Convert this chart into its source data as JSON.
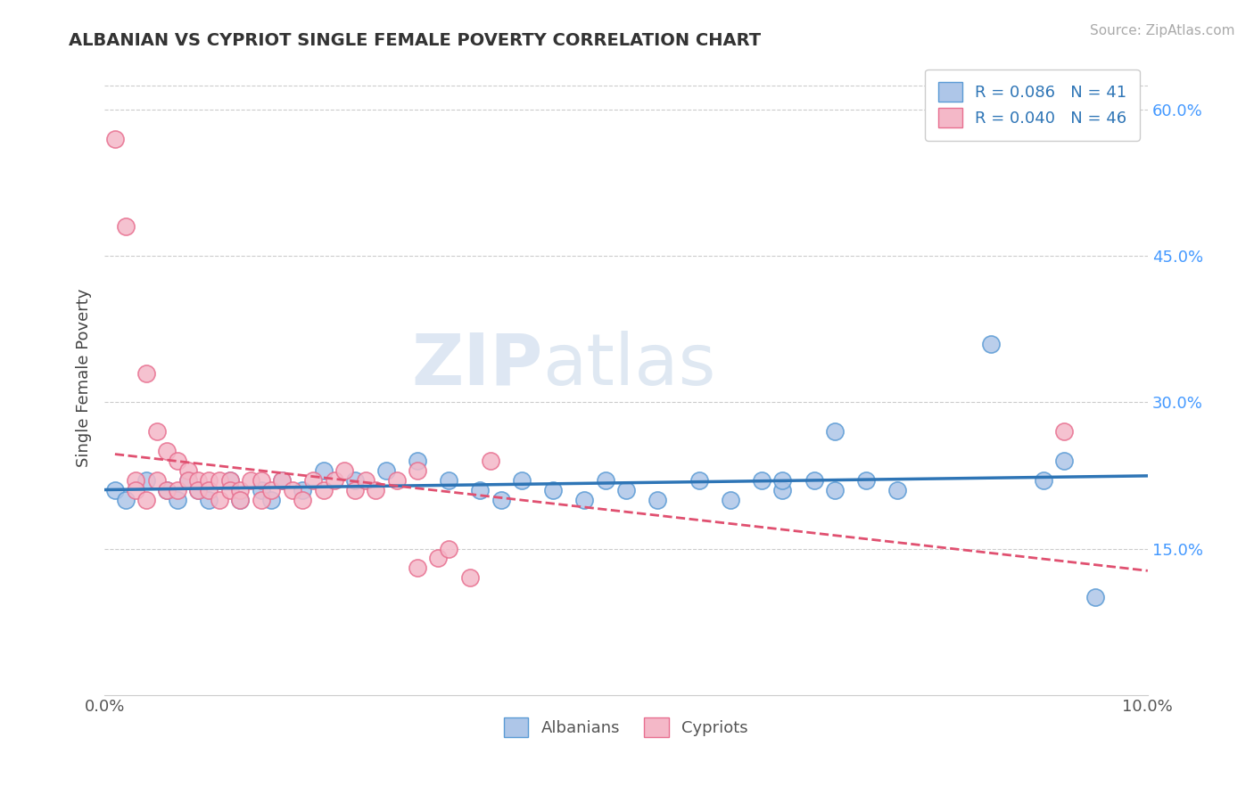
{
  "title": "ALBANIAN VS CYPRIOT SINGLE FEMALE POVERTY CORRELATION CHART",
  "source": "Source: ZipAtlas.com",
  "ylabel": "Single Female Poverty",
  "xlim": [
    0.0,
    0.1
  ],
  "ylim": [
    0.0,
    0.65
  ],
  "r_albanian": 0.086,
  "n_albanian": 41,
  "r_cypriot": 0.04,
  "n_cypriot": 46,
  "albanian_color": "#aec6e8",
  "albanian_edge": "#5b9bd5",
  "cypriot_color": "#f4b8c8",
  "cypriot_edge": "#e87090",
  "albanian_line_color": "#2e75b6",
  "cypriot_line_color": "#e05070",
  "watermark_zip": "ZIP",
  "watermark_atlas": "atlas",
  "background_color": "#ffffff",
  "grid_color": "#cccccc",
  "alb_x": [
    0.001,
    0.002,
    0.004,
    0.006,
    0.007,
    0.008,
    0.009,
    0.01,
    0.012,
    0.013,
    0.015,
    0.016,
    0.017,
    0.019,
    0.021,
    0.024,
    0.027,
    0.03,
    0.033,
    0.036,
    0.038,
    0.04,
    0.043,
    0.046,
    0.048,
    0.05,
    0.053,
    0.057,
    0.06,
    0.063,
    0.065,
    0.068,
    0.07,
    0.073,
    0.076,
    0.065,
    0.07,
    0.085,
    0.09,
    0.092,
    0.095
  ],
  "alb_y": [
    0.21,
    0.2,
    0.22,
    0.21,
    0.2,
    0.22,
    0.21,
    0.2,
    0.22,
    0.2,
    0.21,
    0.2,
    0.22,
    0.21,
    0.23,
    0.22,
    0.23,
    0.24,
    0.22,
    0.21,
    0.2,
    0.22,
    0.21,
    0.2,
    0.22,
    0.21,
    0.2,
    0.22,
    0.2,
    0.22,
    0.21,
    0.22,
    0.21,
    0.22,
    0.21,
    0.22,
    0.27,
    0.36,
    0.22,
    0.24,
    0.1
  ],
  "cyp_x": [
    0.001,
    0.002,
    0.003,
    0.003,
    0.004,
    0.004,
    0.005,
    0.005,
    0.006,
    0.006,
    0.007,
    0.007,
    0.008,
    0.008,
    0.009,
    0.009,
    0.01,
    0.01,
    0.011,
    0.011,
    0.012,
    0.012,
    0.013,
    0.013,
    0.014,
    0.015,
    0.015,
    0.016,
    0.017,
    0.018,
    0.019,
    0.02,
    0.021,
    0.022,
    0.023,
    0.024,
    0.025,
    0.026,
    0.028,
    0.03,
    0.03,
    0.032,
    0.033,
    0.035,
    0.037,
    0.092
  ],
  "cyp_y": [
    0.57,
    0.48,
    0.22,
    0.21,
    0.33,
    0.2,
    0.27,
    0.22,
    0.25,
    0.21,
    0.24,
    0.21,
    0.23,
    0.22,
    0.22,
    0.21,
    0.22,
    0.21,
    0.22,
    0.2,
    0.22,
    0.21,
    0.21,
    0.2,
    0.22,
    0.22,
    0.2,
    0.21,
    0.22,
    0.21,
    0.2,
    0.22,
    0.21,
    0.22,
    0.23,
    0.21,
    0.22,
    0.21,
    0.22,
    0.23,
    0.13,
    0.14,
    0.15,
    0.12,
    0.24,
    0.27
  ]
}
